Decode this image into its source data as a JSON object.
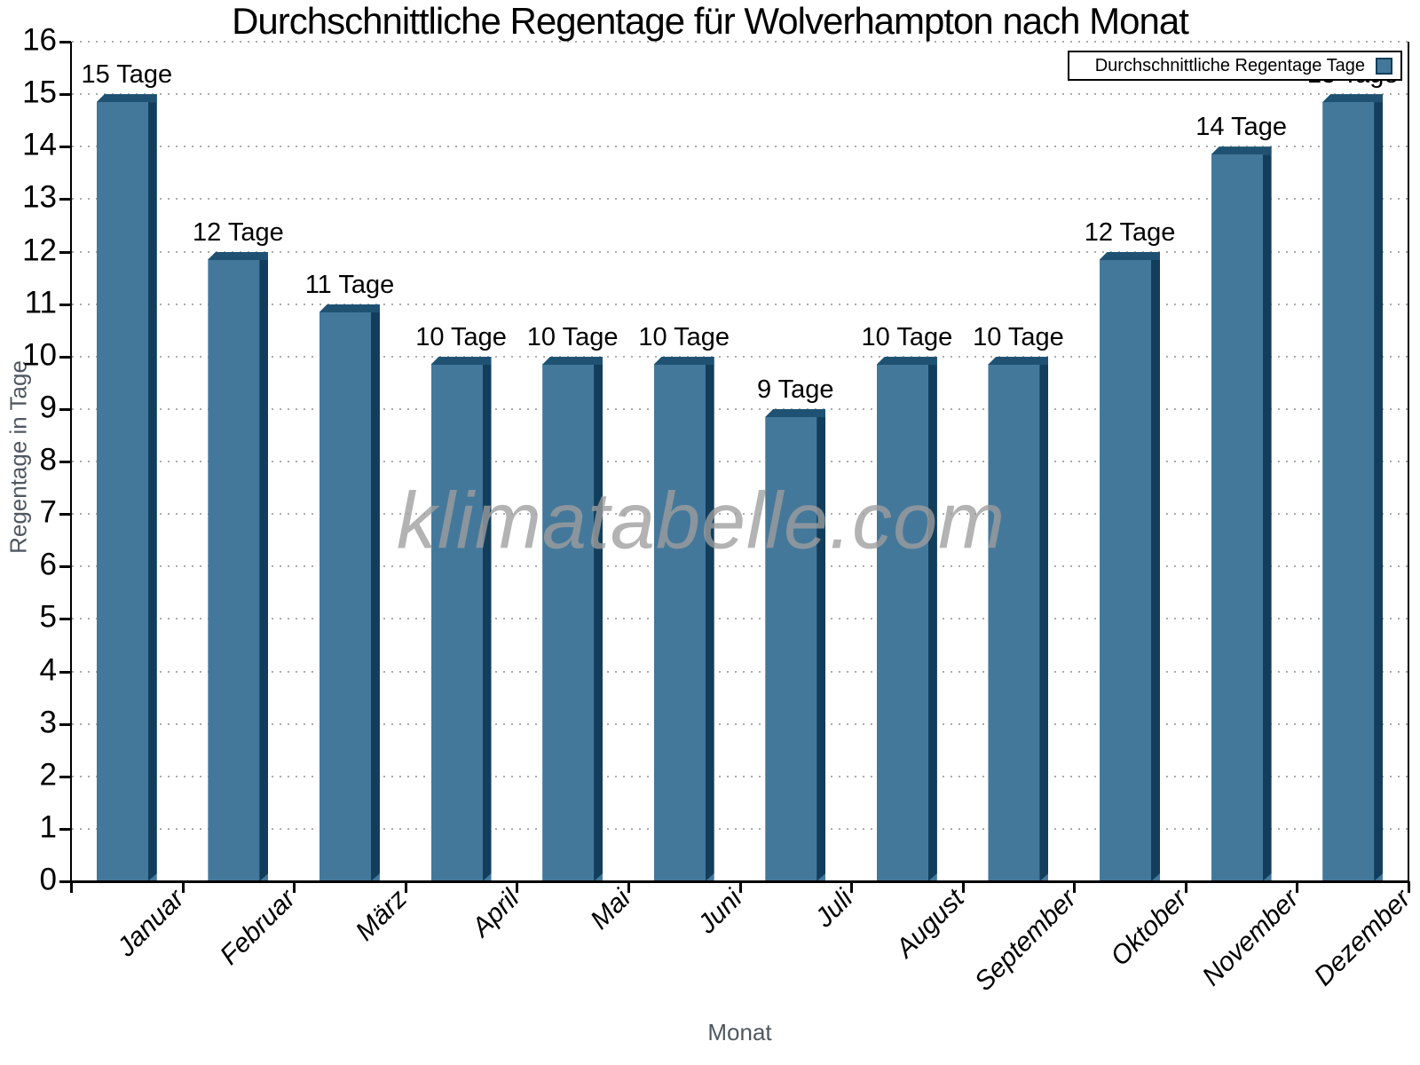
{
  "watermark": "klimatabelle.com",
  "legend": {
    "label": "Durchschnittliche Regentage Tage"
  },
  "chart_data": {
    "type": "bar",
    "title": "Durchschnittliche Regentage für Wolverhampton nach Monat",
    "categories": [
      "Januar",
      "Februar",
      "März",
      "April",
      "Mai",
      "Juni",
      "Juli",
      "August",
      "September",
      "Oktober",
      "November",
      "Dezember"
    ],
    "values": [
      15,
      12,
      11,
      10,
      10,
      10,
      9,
      10,
      10,
      12,
      14,
      15
    ],
    "bar_label_suffix": "Tage",
    "xlabel": "Monat",
    "ylabel": "Regentage in Tage",
    "ylim": [
      0,
      16
    ],
    "ytick_step": 1,
    "grid": "horizontal-dotted",
    "legend_position": "top-right",
    "legend_label": "Durchschnittliche Regentage Tage",
    "colors": {
      "bar_face": "#44789B",
      "bar_top_bevel": "#1F5272",
      "bar_side_shadow": "#123E5B",
      "legend_swatch": "#44789B",
      "legend_swatch_border": "#123E5B",
      "axis_text": "#000000",
      "axis_title_text": "#4F5761",
      "grid": "#ABABAB",
      "watermark": "rgba(158,158,158,0.78)"
    }
  }
}
